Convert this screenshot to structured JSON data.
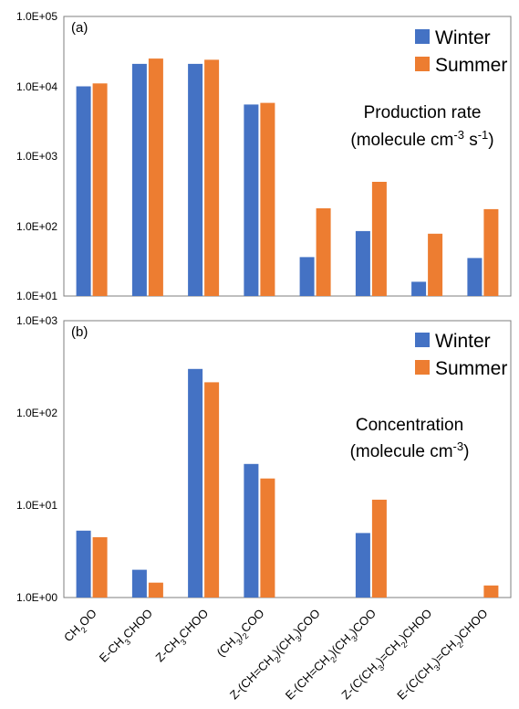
{
  "colors": {
    "winter": "#4472C4",
    "summer": "#ED7D31"
  },
  "categories": [
    [
      {
        "t": "CH"
      },
      {
        "t": "2",
        "sub": true
      },
      {
        "t": "OO"
      }
    ],
    [
      {
        "t": "E-CH"
      },
      {
        "t": "3",
        "sub": true
      },
      {
        "t": "CHOO"
      }
    ],
    [
      {
        "t": "Z-CH"
      },
      {
        "t": "3",
        "sub": true
      },
      {
        "t": "CHOO"
      }
    ],
    [
      {
        "t": "(CH"
      },
      {
        "t": "3",
        "sub": true
      },
      {
        "t": ")"
      },
      {
        "t": "2",
        "sub": true
      },
      {
        "t": "COO"
      }
    ],
    [
      {
        "t": "Z-(CH=CH"
      },
      {
        "t": "2",
        "sub": true
      },
      {
        "t": ")(CH"
      },
      {
        "t": "3",
        "sub": true
      },
      {
        "t": ")COO"
      }
    ],
    [
      {
        "t": "E-(CH=CH"
      },
      {
        "t": "2",
        "sub": true
      },
      {
        "t": ")(CH"
      },
      {
        "t": "3",
        "sub": true
      },
      {
        "t": ")COO"
      }
    ],
    [
      {
        "t": "Z-(C(CH"
      },
      {
        "t": "3",
        "sub": true
      },
      {
        "t": ")=CH"
      },
      {
        "t": "2",
        "sub": true
      },
      {
        "t": ")CHOO"
      }
    ],
    [
      {
        "t": "E-(C(CH"
      },
      {
        "t": "3",
        "sub": true
      },
      {
        "t": ")=CH"
      },
      {
        "t": "2",
        "sub": true
      },
      {
        "t": ")CHOO"
      }
    ]
  ],
  "chart_data": [
    {
      "type": "bar",
      "panel_label": "(a)",
      "yscale": "log",
      "ylim": [
        10,
        100000
      ],
      "yticks": [
        "1.0E+01",
        "1.0E+02",
        "1.0E+03",
        "1.0E+04",
        "1.0E+05"
      ],
      "legend": [
        "Winter",
        "Summer"
      ],
      "legend_position": "top-right",
      "annotation": [
        [
          {
            "t": "Production rate"
          }
        ],
        [
          {
            "t": "(molecule cm"
          },
          {
            "t": "-3",
            "sup": true
          },
          {
            "t": " s"
          },
          {
            "t": "-1",
            "sup": true
          },
          {
            "t": ")"
          }
        ]
      ],
      "categories": [
        "CH2OO",
        "E-CH3CHOO",
        "Z-CH3CHOO",
        "(CH3)2COO",
        "Z-(CH=CH2)(CH3)COO",
        "E-(CH=CH2)(CH3)COO",
        "Z-(C(CH3)=CH2)CHOO",
        "E-(C(CH3)=CH2)CHOO"
      ],
      "series": [
        {
          "name": "Winter",
          "values": [
            10000,
            21000,
            21000,
            5500,
            36,
            85,
            16,
            35
          ]
        },
        {
          "name": "Summer",
          "values": [
            11000,
            25000,
            24000,
            5800,
            180,
            430,
            78,
            175
          ]
        }
      ]
    },
    {
      "type": "bar",
      "panel_label": "(b)",
      "yscale": "log",
      "ylim": [
        1,
        1000
      ],
      "yticks": [
        "1.0E+00",
        "1.0E+01",
        "1.0E+02",
        "1.0E+03"
      ],
      "legend": [
        "Winter",
        "Summer"
      ],
      "legend_position": "top-right",
      "annotation": [
        [
          {
            "t": "Concentration"
          }
        ],
        [
          {
            "t": "(molecule cm"
          },
          {
            "t": "-3",
            "sup": true
          },
          {
            "t": ")"
          }
        ]
      ],
      "categories": [
        "CH2OO",
        "E-CH3CHOO",
        "Z-CH3CHOO",
        "(CH3)2COO",
        "Z-(CH=CH2)(CH3)COO",
        "E-(CH=CH2)(CH3)COO",
        "Z-(C(CH3)=CH2)CHOO",
        "E-(C(CH3)=CH2)CHOO"
      ],
      "series": [
        {
          "name": "Winter",
          "values": [
            5.3,
            2.0,
            300,
            28,
            null,
            5.0,
            null,
            null
          ]
        },
        {
          "name": "Summer",
          "values": [
            4.5,
            1.45,
            215,
            19.5,
            null,
            11.5,
            null,
            1.35
          ]
        }
      ]
    }
  ]
}
